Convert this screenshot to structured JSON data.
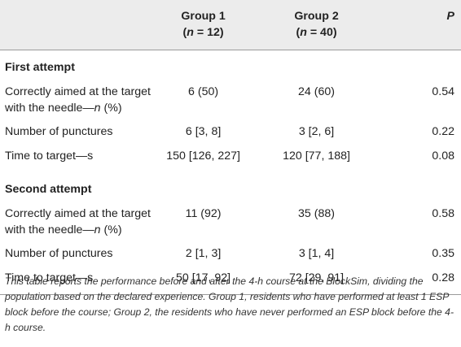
{
  "header": {
    "col_group1_title": "Group 1",
    "col_group1_n": "(n = 12)",
    "col_group2_title": "Group 2",
    "col_group2_n": "(n = 40)",
    "col_p": "P"
  },
  "sections": [
    {
      "title": "First attempt",
      "rows": [
        {
          "label_line1": "Correctly aimed at the target",
          "label_line2": "with the needle—n (%)",
          "g1": "6 (50)",
          "g2": "24 (60)",
          "p": "0.54"
        },
        {
          "label": "Number of punctures",
          "g1": "6 [3, 8]",
          "g2": "3 [2, 6]",
          "p": "0.22"
        },
        {
          "label": "Time to target—s",
          "g1": "150 [126, 227]",
          "g2": "120 [77, 188]",
          "p": "0.08"
        }
      ]
    },
    {
      "title": "Second attempt",
      "rows": [
        {
          "label_line1": "Correctly aimed at the target",
          "label_line2": "with the needle—n (%)",
          "g1": "11 (92)",
          "g2": "35 (88)",
          "p": "0.58"
        },
        {
          "label": "Number of punctures",
          "g1": "2 [1, 3]",
          "g2": "3 [1, 4]",
          "p": "0.35"
        },
        {
          "label": "Time to target—s",
          "g1": "50 [17, 92]",
          "g2": "72 [29, 91]",
          "p": "0.28"
        }
      ]
    }
  ],
  "footnote": "This table reports the performance before and after the 4-h course at the BlockSim, dividing the population based on the declared experience. Group 1, residents who have performed at least 1 ESP block before the course; Group 2, the residents who have never performed an ESP block before the 4-h course."
}
